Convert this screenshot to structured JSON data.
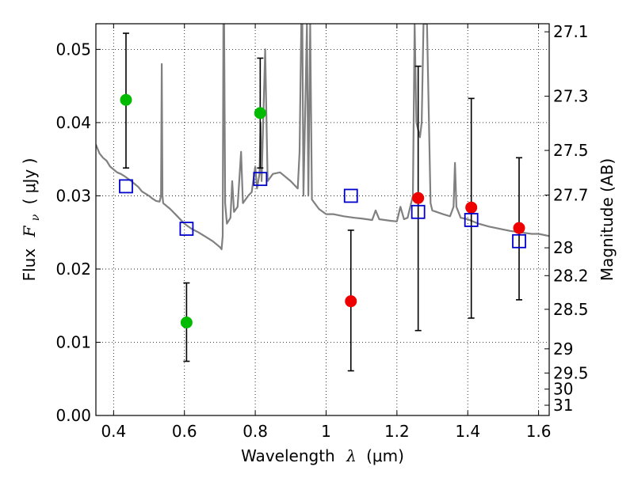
{
  "chart_data": {
    "type": "scatter",
    "xlabel_main": "Wavelength",
    "xlabel_symbol": "λ",
    "xlabel_unit": "(μm)",
    "ylabel_main": "Flux",
    "ylabel_symbol": "F",
    "ylabel_subscript": "ν",
    "ylabel_unit": "( μJy )",
    "ylabel_right": "Magnitude (AB)",
    "xlim": [
      0.35,
      1.63
    ],
    "ylim": [
      0.0,
      0.0535
    ],
    "grid": true,
    "x_ticks": [
      0.4,
      0.6,
      0.8,
      1.0,
      1.2,
      1.4,
      1.6
    ],
    "x_tick_labels": [
      "0.4",
      "0.6",
      "0.8",
      "1",
      "1.2",
      "1.4",
      "1.6"
    ],
    "y_ticks": [
      0.0,
      0.01,
      0.02,
      0.03,
      0.04,
      0.05
    ],
    "y_tick_labels": [
      "0.00",
      "0.01",
      "0.02",
      "0.03",
      "0.04",
      "0.05"
    ],
    "right_ticks": [
      {
        "label": "27.1",
        "flux": 0.0524
      },
      {
        "label": "27.3",
        "flux": 0.0436
      },
      {
        "label": "27.5",
        "flux": 0.0362
      },
      {
        "label": "27.7",
        "flux": 0.0301
      },
      {
        "label": "28",
        "flux": 0.0229
      },
      {
        "label": "28.2",
        "flux": 0.0191
      },
      {
        "label": "28.5",
        "flux": 0.0145
      },
      {
        "label": "29",
        "flux": 0.0091
      },
      {
        "label": "29.5",
        "flux": 0.0058
      },
      {
        "label": "30",
        "flux": 0.0036
      },
      {
        "label": "31",
        "flux": 0.0014
      }
    ],
    "series": [
      {
        "marker": "filled-circle",
        "color": "#00bb00",
        "points": [
          {
            "x": 0.435,
            "y": 0.0431,
            "err_low": 0.0338,
            "err_high": 0.0522
          },
          {
            "x": 0.606,
            "y": 0.0127,
            "err_low": 0.0074,
            "err_high": 0.0181
          },
          {
            "x": 0.814,
            "y": 0.0413,
            "err_low": 0.0338,
            "err_high": 0.0488
          }
        ]
      },
      {
        "marker": "filled-circle",
        "color": "#ee0000",
        "points": [
          {
            "x": 1.07,
            "y": 0.0156,
            "err_low": 0.0061,
            "err_high": 0.0253
          },
          {
            "x": 1.26,
            "y": 0.0297,
            "err_low": 0.0116,
            "err_high": 0.0477
          },
          {
            "x": 1.41,
            "y": 0.0284,
            "err_low": 0.0133,
            "err_high": 0.0433
          },
          {
            "x": 1.545,
            "y": 0.0256,
            "err_low": 0.0158,
            "err_high": 0.0352
          }
        ]
      },
      {
        "marker": "open-square",
        "color": "#0000cc",
        "points": [
          {
            "x": 0.435,
            "y": 0.0313
          },
          {
            "x": 0.606,
            "y": 0.0255
          },
          {
            "x": 0.814,
            "y": 0.0323
          },
          {
            "x": 1.07,
            "y": 0.03
          },
          {
            "x": 1.26,
            "y": 0.0278
          },
          {
            "x": 1.41,
            "y": 0.0267
          },
          {
            "x": 1.545,
            "y": 0.0238
          }
        ]
      },
      {
        "marker": "line",
        "color": "#808080",
        "points": [
          [
            0.35,
            0.037
          ],
          [
            0.36,
            0.0358
          ],
          [
            0.37,
            0.0352
          ],
          [
            0.38,
            0.0348
          ],
          [
            0.39,
            0.034
          ],
          [
            0.4,
            0.0336
          ],
          [
            0.41,
            0.0332
          ],
          [
            0.42,
            0.033
          ],
          [
            0.43,
            0.0327
          ],
          [
            0.45,
            0.032
          ],
          [
            0.47,
            0.0312
          ],
          [
            0.48,
            0.0306
          ],
          [
            0.5,
            0.03
          ],
          [
            0.51,
            0.0296
          ],
          [
            0.52,
            0.0293
          ],
          [
            0.53,
            0.0292
          ],
          [
            0.534,
            0.03
          ],
          [
            0.536,
            0.048
          ],
          [
            0.538,
            0.03
          ],
          [
            0.54,
            0.029
          ],
          [
            0.56,
            0.0282
          ],
          [
            0.58,
            0.0272
          ],
          [
            0.6,
            0.0262
          ],
          [
            0.62,
            0.0255
          ],
          [
            0.64,
            0.025
          ],
          [
            0.66,
            0.0244
          ],
          [
            0.68,
            0.0238
          ],
          [
            0.7,
            0.023
          ],
          [
            0.705,
            0.0227
          ],
          [
            0.708,
            0.0245
          ],
          [
            0.71,
            0.0535
          ],
          [
            0.712,
            0.0535
          ],
          [
            0.715,
            0.029
          ],
          [
            0.72,
            0.0262
          ],
          [
            0.73,
            0.027
          ],
          [
            0.735,
            0.032
          ],
          [
            0.74,
            0.0278
          ],
          [
            0.75,
            0.0285
          ],
          [
            0.76,
            0.036
          ],
          [
            0.765,
            0.029
          ],
          [
            0.78,
            0.03
          ],
          [
            0.79,
            0.0305
          ],
          [
            0.8,
            0.034
          ],
          [
            0.805,
            0.031
          ],
          [
            0.812,
            0.033
          ],
          [
            0.815,
            0.04
          ],
          [
            0.818,
            0.032
          ],
          [
            0.828,
            0.05
          ],
          [
            0.835,
            0.032
          ],
          [
            0.85,
            0.033
          ],
          [
            0.87,
            0.0332
          ],
          [
            0.9,
            0.032
          ],
          [
            0.92,
            0.031
          ],
          [
            0.925,
            0.036
          ],
          [
            0.93,
            0.0535
          ],
          [
            0.933,
            0.0535
          ],
          [
            0.936,
            0.03
          ],
          [
            0.942,
            0.044
          ],
          [
            0.946,
            0.0535
          ],
          [
            0.95,
            0.03
          ],
          [
            0.955,
            0.0535
          ],
          [
            0.96,
            0.0295
          ],
          [
            0.98,
            0.0282
          ],
          [
            1.0,
            0.0275
          ],
          [
            1.02,
            0.0275
          ],
          [
            1.05,
            0.0272
          ],
          [
            1.08,
            0.027
          ],
          [
            1.1,
            0.0269
          ],
          [
            1.13,
            0.0267
          ],
          [
            1.14,
            0.028
          ],
          [
            1.15,
            0.0268
          ],
          [
            1.18,
            0.0266
          ],
          [
            1.2,
            0.0265
          ],
          [
            1.21,
            0.0285
          ],
          [
            1.22,
            0.0268
          ],
          [
            1.23,
            0.027
          ],
          [
            1.245,
            0.03
          ],
          [
            1.25,
            0.0535
          ],
          [
            1.255,
            0.04
          ],
          [
            1.265,
            0.038
          ],
          [
            1.27,
            0.04
          ],
          [
            1.275,
            0.0535
          ],
          [
            1.285,
            0.0535
          ],
          [
            1.295,
            0.029
          ],
          [
            1.3,
            0.028
          ],
          [
            1.33,
            0.0275
          ],
          [
            1.35,
            0.0272
          ],
          [
            1.36,
            0.0285
          ],
          [
            1.364,
            0.0345
          ],
          [
            1.368,
            0.0285
          ],
          [
            1.38,
            0.027
          ],
          [
            1.4,
            0.0268
          ],
          [
            1.43,
            0.0262
          ],
          [
            1.46,
            0.0258
          ],
          [
            1.49,
            0.0255
          ],
          [
            1.52,
            0.0252
          ],
          [
            1.55,
            0.025
          ],
          [
            1.58,
            0.0248
          ],
          [
            1.6,
            0.0248
          ],
          [
            1.63,
            0.0245
          ]
        ]
      }
    ]
  }
}
